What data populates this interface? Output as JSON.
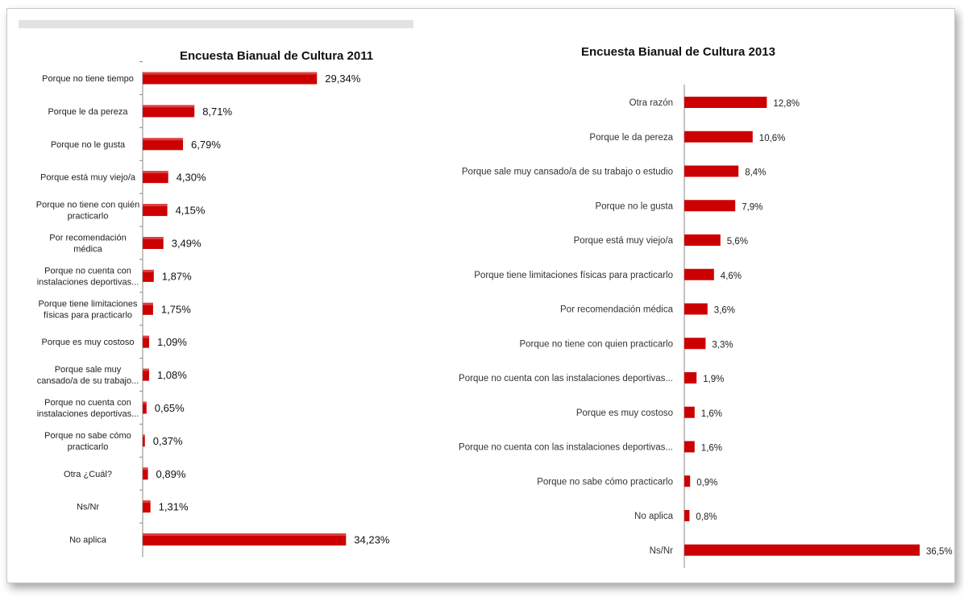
{
  "colors": {
    "bar": "#cc0000",
    "axis": "#888888",
    "frame": "#c9c9c9"
  },
  "chart_data": [
    {
      "type": "bar",
      "orientation": "horizontal",
      "title": "Encuesta Bianual de Cultura 2011",
      "categories": [
        "Porque no tiene tiempo",
        "Porque le da pereza",
        "Porque no le gusta",
        "Porque está muy viejo/a",
        "Porque no tiene con quién practicarlo",
        "Por recomendación médica",
        "Porque no cuenta con instalaciones deportivas...",
        "Porque tiene limitaciones físicas para practicarlo",
        "Porque es muy costoso",
        "Porque sale muy cansado/a de su trabajo...",
        "Porque no cuenta con instalaciones deportivas...",
        "Porque no sabe cómo practicarlo",
        "Otra ¿Cuál?",
        "Ns/Nr",
        "No aplica"
      ],
      "category_lines": [
        [
          "Porque no tiene tiempo"
        ],
        [
          "Porque le da pereza"
        ],
        [
          "Porque no le gusta"
        ],
        [
          "Porque está muy viejo/a"
        ],
        [
          "Porque no tiene con quién",
          "practicarlo"
        ],
        [
          "Por recomendación",
          "médica"
        ],
        [
          "Porque no cuenta con",
          "instalaciones deportivas..."
        ],
        [
          "Porque  tiene limitaciones",
          "físicas para practicarlo"
        ],
        [
          "Porque es muy costoso"
        ],
        [
          "Porque sale muy",
          "cansado/a de su trabajo..."
        ],
        [
          "Porque no cuenta con",
          "instalaciones deportivas..."
        ],
        [
          "Porque no sabe cómo",
          "practicarlo"
        ],
        [
          "Otra ¿Cuál?"
        ],
        [
          "Ns/Nr"
        ],
        [
          "No aplica"
        ]
      ],
      "values": [
        29.34,
        8.71,
        6.79,
        4.3,
        4.15,
        3.49,
        1.87,
        1.75,
        1.09,
        1.08,
        0.65,
        0.37,
        0.89,
        1.31,
        34.23
      ],
      "labels": [
        "29,34%",
        "8,71%",
        "6,79%",
        "4,30%",
        "4,15%",
        "3,49%",
        "1,87%",
        "1,75%",
        "1,09%",
        "1,08%",
        "0,65%",
        "0,37%",
        "0,89%",
        "1,31%",
        "34,23%"
      ],
      "grid": false,
      "legend": "none"
    },
    {
      "type": "bar",
      "orientation": "horizontal",
      "title": "Encuesta Bianual de Cultura 2013",
      "categories": [
        "Otra razón",
        "Porque le da pereza",
        "Porque sale muy cansado/a de su trabajo o estudio",
        "Porque no le gusta",
        "Porque está muy viejo/a",
        "Porque tiene limitaciones físicas para practicarlo",
        "Por recomendación médica",
        "Porque no tiene con quien practicarlo",
        "Porque no cuenta con las instalaciones deportivas...",
        "Porque es muy costoso",
        "Porque no cuenta con las instalaciones deportivas...",
        "Porque no sabe cómo practicarlo",
        "No aplica",
        "Ns/Nr"
      ],
      "values": [
        12.8,
        10.6,
        8.4,
        7.9,
        5.6,
        4.6,
        3.6,
        3.3,
        1.9,
        1.6,
        1.6,
        0.9,
        0.8,
        36.5
      ],
      "labels": [
        "12,8%",
        "10,6%",
        "8,4%",
        "7,9%",
        "5,6%",
        "4,6%",
        "3,6%",
        "3,3%",
        "1,9%",
        "1,6%",
        "1,6%",
        "0,9%",
        "0,8%",
        "36,5%"
      ],
      "grid": false,
      "legend": "none"
    }
  ]
}
